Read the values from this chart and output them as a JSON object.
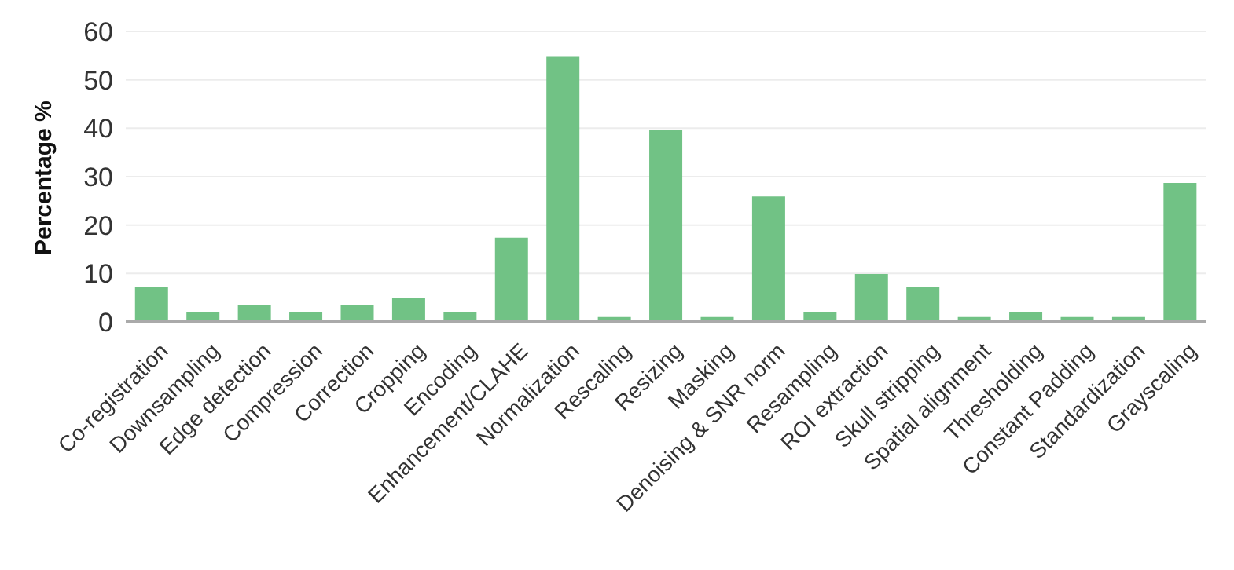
{
  "chart_data": {
    "type": "bar",
    "ylabel": "Percentage %",
    "categories": [
      "Co-registration",
      "Downsampling",
      "Edge detection",
      "Compression",
      "Correction",
      "Cropping",
      "Encoding",
      "Enhancement/CLAHE",
      "Normalization",
      "Rescaling",
      "Resizing",
      "Masking",
      "Denoising & SNR norm",
      "Resampling",
      "ROI extraction",
      "Skull stripping",
      "Spatial alignment",
      "Thresholding",
      "Constant Padding",
      "Standardization",
      "Grayscaling"
    ],
    "values": [
      7.3,
      2.1,
      3.4,
      2.1,
      3.4,
      5.0,
      2.1,
      17.4,
      54.9,
      1.0,
      39.6,
      1.0,
      25.9,
      2.1,
      9.9,
      7.3,
      1.0,
      2.1,
      1.0,
      1.0,
      28.7
    ],
    "color": "#71c285",
    "ylim": [
      0,
      60
    ],
    "yticks": [
      0,
      10,
      20,
      30,
      40,
      50,
      60
    ],
    "grid": "y",
    "legend": false
  }
}
